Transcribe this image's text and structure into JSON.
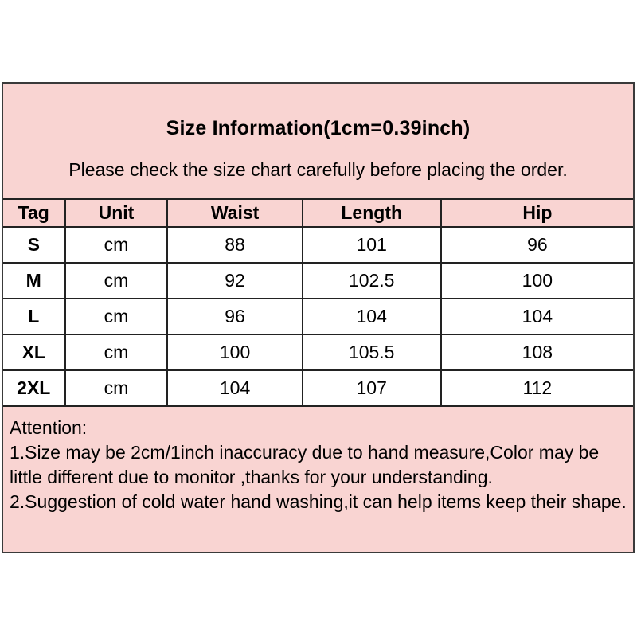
{
  "header": {
    "title": "Size Information(1cm=0.39inch)",
    "subtitle": "Please check the size chart carefully before placing the order."
  },
  "size_table": {
    "columns": [
      "Tag",
      "Unit",
      "Waist",
      "Length",
      "Hip"
    ],
    "rows": [
      {
        "tag": "S",
        "unit": "cm",
        "waist": "88",
        "length": "101",
        "hip": "96"
      },
      {
        "tag": "M",
        "unit": "cm",
        "waist": "92",
        "length": "102.5",
        "hip": "100"
      },
      {
        "tag": "L",
        "unit": "cm",
        "waist": "96",
        "length": "104",
        "hip": "104"
      },
      {
        "tag": "XL",
        "unit": "cm",
        "waist": "100",
        "length": "105.5",
        "hip": "108"
      },
      {
        "tag": "2XL",
        "unit": "cm",
        "waist": "104",
        "length": "107",
        "hip": "112"
      }
    ]
  },
  "attention": {
    "heading": "Attention:",
    "notes": [
      "1.Size may be 2cm/1inch inaccuracy due to hand measure,Color may be little different due to monitor ,thanks for your understanding.",
      "2.Suggestion of cold water hand washing,it can help items keep their shape."
    ]
  },
  "colors": {
    "card_pink": "#f9d4d2",
    "row_white": "#ffffff",
    "border_dark": "#3a3a3a",
    "grid_dark": "#222222",
    "text_black": "#000000"
  }
}
